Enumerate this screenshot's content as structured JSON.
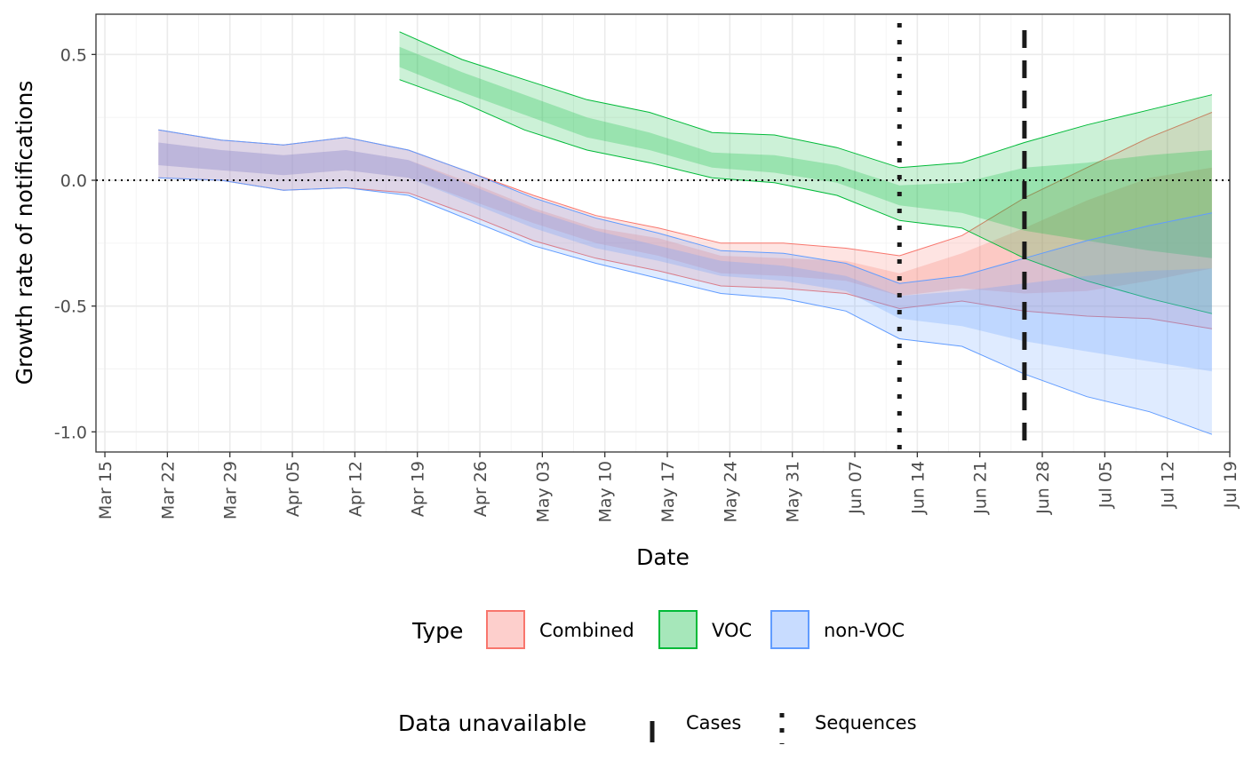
{
  "chart_data": {
    "type": "area",
    "title": "",
    "xlabel": "Date",
    "ylabel": "Growth rate of notifications",
    "x_ticks": [
      "Mar 15",
      "Mar 22",
      "Mar 29",
      "Apr 05",
      "Apr 12",
      "Apr 19",
      "Apr 26",
      "May 03",
      "May 10",
      "May 17",
      "May 24",
      "May 31",
      "Jun 07",
      "Jun 14",
      "Jun 21",
      "Jun 28",
      "Jul 05",
      "Jul 12",
      "Jul 19"
    ],
    "x_tick_dates": [
      "2021-03-15",
      "2021-03-22",
      "2021-03-29",
      "2021-04-05",
      "2021-04-12",
      "2021-04-19",
      "2021-04-26",
      "2021-05-03",
      "2021-05-10",
      "2021-05-17",
      "2021-05-24",
      "2021-05-31",
      "2021-06-07",
      "2021-06-14",
      "2021-06-21",
      "2021-06-28",
      "2021-07-05",
      "2021-07-12",
      "2021-07-19"
    ],
    "xlim": [
      "2021-03-14",
      "2021-07-19"
    ],
    "y_ticks": [
      "0.5",
      "0.0",
      "-0.5",
      "-1.0"
    ],
    "ylim": [
      -1.08,
      0.66
    ],
    "grid": true,
    "reference_lines": [
      {
        "orientation": "horizontal",
        "y": 0,
        "style": "dotted"
      },
      {
        "orientation": "vertical",
        "x": "2021-06-12",
        "style": "dotted",
        "legend": "Sequences"
      },
      {
        "orientation": "vertical",
        "x": "2021-06-26",
        "style": "dashed",
        "legend": "Cases"
      }
    ],
    "legend": {
      "position": "bottom",
      "type_title": "Type",
      "items": [
        {
          "label": "Combined",
          "fill": "#F8766D",
          "line": "#F8766D"
        },
        {
          "label": "VOC",
          "fill": "#00BA38",
          "line": "#00BA38"
        },
        {
          "label": "non-VOC",
          "fill": "#619CFF",
          "line": "#619CFF"
        }
      ],
      "unavailable_title": "Data unavailable",
      "unavailable_items": [
        {
          "label": "Cases",
          "style": "dashed"
        },
        {
          "label": "Sequences",
          "style": "dotted"
        }
      ]
    },
    "series": [
      {
        "name": "Combined",
        "color": "#F8766D",
        "x": [
          "2021-03-21",
          "2021-03-28",
          "2021-04-04",
          "2021-04-11",
          "2021-04-18",
          "2021-04-25",
          "2021-05-02",
          "2021-05-09",
          "2021-05-16",
          "2021-05-23",
          "2021-05-30",
          "2021-06-06",
          "2021-06-12",
          "2021-06-19",
          "2021-06-26",
          "2021-07-03",
          "2021-07-10",
          "2021-07-17"
        ],
        "outer_upper": [
          0.2,
          0.16,
          0.14,
          0.17,
          0.12,
          0.03,
          -0.06,
          -0.14,
          -0.19,
          -0.25,
          -0.25,
          -0.27,
          -0.3,
          -0.22,
          -0.07,
          0.05,
          0.17,
          0.27
        ],
        "inner_upper": [
          0.15,
          0.12,
          0.1,
          0.12,
          0.08,
          -0.01,
          -0.11,
          -0.19,
          -0.23,
          -0.3,
          -0.31,
          -0.32,
          -0.37,
          -0.29,
          -0.19,
          -0.08,
          0.01,
          0.05
        ],
        "inner_lower": [
          0.06,
          0.04,
          0.02,
          0.04,
          0.01,
          -0.08,
          -0.17,
          -0.25,
          -0.3,
          -0.37,
          -0.38,
          -0.4,
          -0.46,
          -0.43,
          -0.45,
          -0.44,
          -0.4,
          -0.35
        ],
        "outer_lower": [
          0.01,
          0.0,
          -0.04,
          -0.03,
          -0.05,
          -0.14,
          -0.24,
          -0.31,
          -0.36,
          -0.42,
          -0.43,
          -0.45,
          -0.51,
          -0.48,
          -0.52,
          -0.54,
          -0.55,
          -0.59
        ]
      },
      {
        "name": "VOC",
        "color": "#00BA38",
        "x": [
          "2021-04-17",
          "2021-04-24",
          "2021-05-01",
          "2021-05-08",
          "2021-05-15",
          "2021-05-22",
          "2021-05-29",
          "2021-06-05",
          "2021-06-12",
          "2021-06-19",
          "2021-06-26",
          "2021-07-03",
          "2021-07-10",
          "2021-07-17"
        ],
        "outer_upper": [
          0.59,
          0.48,
          0.4,
          0.32,
          0.27,
          0.19,
          0.18,
          0.13,
          0.05,
          0.07,
          0.15,
          0.22,
          0.28,
          0.34
        ],
        "inner_upper": [
          0.53,
          0.43,
          0.34,
          0.25,
          0.19,
          0.11,
          0.1,
          0.06,
          -0.02,
          -0.01,
          0.05,
          0.07,
          0.1,
          0.12
        ],
        "inner_lower": [
          0.45,
          0.35,
          0.26,
          0.17,
          0.12,
          0.05,
          0.03,
          -0.01,
          -0.1,
          -0.13,
          -0.2,
          -0.24,
          -0.28,
          -0.31
        ],
        "outer_lower": [
          0.4,
          0.31,
          0.2,
          0.12,
          0.07,
          0.01,
          -0.01,
          -0.06,
          -0.16,
          -0.19,
          -0.31,
          -0.4,
          -0.47,
          -0.53
        ]
      },
      {
        "name": "non-VOC",
        "color": "#619CFF",
        "x": [
          "2021-03-21",
          "2021-03-28",
          "2021-04-04",
          "2021-04-11",
          "2021-04-18",
          "2021-04-25",
          "2021-05-02",
          "2021-05-09",
          "2021-05-16",
          "2021-05-23",
          "2021-05-30",
          "2021-06-06",
          "2021-06-12",
          "2021-06-19",
          "2021-06-26",
          "2021-07-03",
          "2021-07-10",
          "2021-07-17"
        ],
        "outer_upper": [
          0.2,
          0.16,
          0.14,
          0.17,
          0.12,
          0.03,
          -0.07,
          -0.15,
          -0.21,
          -0.28,
          -0.29,
          -0.33,
          -0.41,
          -0.38,
          -0.31,
          -0.24,
          -0.18,
          -0.13
        ],
        "inner_upper": [
          0.15,
          0.12,
          0.1,
          0.12,
          0.08,
          -0.02,
          -0.12,
          -0.2,
          -0.26,
          -0.32,
          -0.34,
          -0.38,
          -0.46,
          -0.44,
          -0.41,
          -0.38,
          -0.36,
          -0.35
        ],
        "inner_lower": [
          0.06,
          0.04,
          0.02,
          0.04,
          0.01,
          -0.09,
          -0.19,
          -0.27,
          -0.32,
          -0.38,
          -0.4,
          -0.44,
          -0.55,
          -0.58,
          -0.64,
          -0.68,
          -0.72,
          -0.76
        ],
        "outer_lower": [
          0.01,
          0.0,
          -0.04,
          -0.03,
          -0.06,
          -0.16,
          -0.26,
          -0.33,
          -0.39,
          -0.45,
          -0.47,
          -0.52,
          -0.63,
          -0.66,
          -0.77,
          -0.86,
          -0.92,
          -1.01
        ]
      }
    ]
  }
}
